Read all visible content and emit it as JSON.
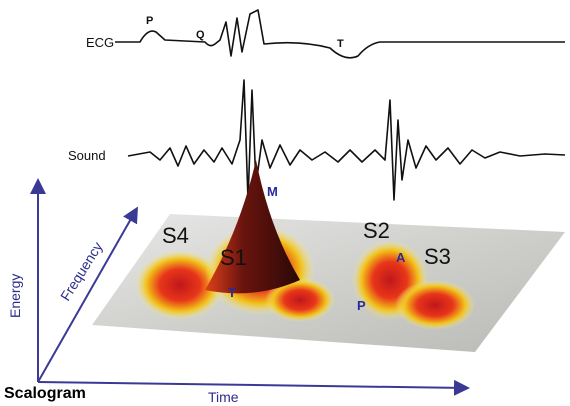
{
  "ecg": {
    "label": "ECG",
    "markers": [
      "P",
      "Q",
      "T"
    ]
  },
  "sound": {
    "label": "Sound"
  },
  "scalogram": {
    "title": "Scalogram",
    "axes": {
      "energy": "Energy",
      "frequency": "Frequency",
      "time": "Time"
    },
    "peaks": [
      "S4",
      "S1",
      "S2",
      "S3"
    ],
    "components": [
      "M",
      "T",
      "A",
      "P"
    ]
  }
}
